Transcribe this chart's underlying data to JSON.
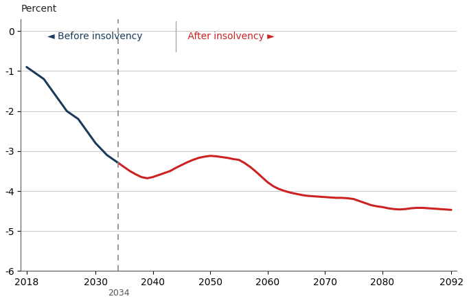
{
  "title": "",
  "ylabel": "Percent",
  "ylim": [
    -6,
    0.3
  ],
  "xlim": [
    2017,
    2093
  ],
  "yticks": [
    0,
    -1,
    -2,
    -3,
    -4,
    -5,
    -6
  ],
  "xticks": [
    2018,
    2030,
    2040,
    2050,
    2060,
    2070,
    2080,
    2092
  ],
  "xtick_labels": [
    "2018",
    "2030",
    "2040",
    "2050",
    "2060",
    "2070",
    "2080",
    "2092"
  ],
  "vline_x": 2034,
  "vline_label": "2034",
  "before_color": "#1a3a5c",
  "after_color": "#cc2222",
  "background_color": "#ffffff",
  "grid_color": "#cccccc",
  "before_x": [
    2018,
    2019,
    2020,
    2021,
    2022,
    2023,
    2024,
    2025,
    2026,
    2027,
    2028,
    2029,
    2030,
    2031,
    2032,
    2033,
    2034
  ],
  "before_y": [
    -0.9,
    -1.0,
    -1.1,
    -1.2,
    -1.4,
    -1.6,
    -1.8,
    -2.0,
    -2.1,
    -2.2,
    -2.4,
    -2.6,
    -2.8,
    -2.95,
    -3.1,
    -3.2,
    -3.3
  ],
  "after_x": [
    2034,
    2035,
    2036,
    2037,
    2038,
    2039,
    2040,
    2041,
    2042,
    2043,
    2044,
    2045,
    2046,
    2047,
    2048,
    2049,
    2050,
    2051,
    2052,
    2053,
    2054,
    2055,
    2056,
    2057,
    2058,
    2059,
    2060,
    2061,
    2062,
    2063,
    2064,
    2065,
    2066,
    2067,
    2068,
    2069,
    2070,
    2071,
    2072,
    2073,
    2074,
    2075,
    2076,
    2077,
    2078,
    2079,
    2080,
    2081,
    2082,
    2083,
    2084,
    2085,
    2086,
    2087,
    2088,
    2089,
    2090,
    2091,
    2092
  ],
  "after_y": [
    -3.3,
    -3.4,
    -3.5,
    -3.58,
    -3.65,
    -3.68,
    -3.65,
    -3.6,
    -3.55,
    -3.5,
    -3.42,
    -3.35,
    -3.28,
    -3.22,
    -3.17,
    -3.14,
    -3.12,
    -3.13,
    -3.15,
    -3.17,
    -3.2,
    -3.22,
    -3.3,
    -3.4,
    -3.52,
    -3.65,
    -3.78,
    -3.88,
    -3.95,
    -4.0,
    -4.04,
    -4.07,
    -4.1,
    -4.12,
    -4.13,
    -4.14,
    -4.15,
    -4.16,
    -4.17,
    -4.17,
    -4.18,
    -4.2,
    -4.25,
    -4.3,
    -4.35,
    -4.38,
    -4.4,
    -4.43,
    -4.45,
    -4.46,
    -4.45,
    -4.43,
    -4.42,
    -4.42,
    -4.43,
    -4.44,
    -4.45,
    -4.46,
    -4.47
  ],
  "before_arrow": "◄",
  "after_arrow": "►",
  "before_label_text": " Before insolvency",
  "after_label_text": " After insolvency ",
  "separator_color": "#aaaaaa"
}
